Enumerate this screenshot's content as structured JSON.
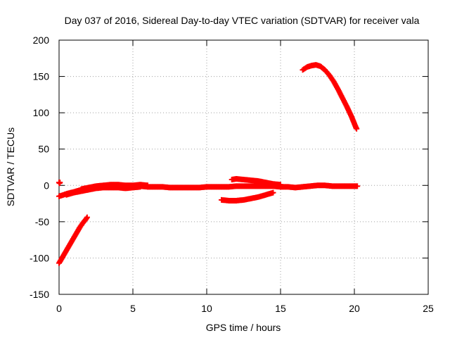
{
  "chart_data": {
    "type": "scatter",
    "title": "Day 037 of 2016, Sidereal Day-to-day VTEC variation (SDTVAR) for receiver vala",
    "xlabel": "GPS time / hours",
    "ylabel": "SDTVAR / TECUs",
    "xlim": [
      0,
      25
    ],
    "ylim": [
      -150,
      200
    ],
    "xticks": [
      0,
      5,
      10,
      15,
      20,
      25
    ],
    "yticks": [
      -150,
      -100,
      -50,
      0,
      50,
      100,
      150,
      200
    ],
    "grid": true,
    "legend": "none",
    "marker": "plus",
    "series_color": "#ff0000",
    "series": [
      {
        "points": [
          [
            0.0,
            4
          ],
          [
            0.03,
            3
          ],
          [
            0.06,
            4
          ]
        ]
      },
      {
        "points": [
          [
            0.0,
            -107
          ],
          [
            0.2,
            -100
          ],
          [
            0.4,
            -93
          ],
          [
            0.6,
            -86
          ],
          [
            0.8,
            -79
          ],
          [
            1.0,
            -72
          ],
          [
            1.2,
            -65
          ],
          [
            1.4,
            -58
          ],
          [
            1.6,
            -52
          ],
          [
            1.8,
            -47
          ],
          [
            1.9,
            -44
          ]
        ]
      },
      {
        "points": [
          [
            0.0,
            -15
          ],
          [
            0.3,
            -13
          ],
          [
            0.6,
            -11
          ],
          [
            1.0,
            -9
          ],
          [
            1.5,
            -6
          ],
          [
            2.0,
            -4
          ],
          [
            2.5,
            -3
          ],
          [
            3.0,
            -2
          ],
          [
            3.5,
            -2
          ],
          [
            4.0,
            -1
          ],
          [
            4.5,
            -2
          ],
          [
            5.0,
            -2
          ],
          [
            5.5,
            -1
          ],
          [
            6.0,
            -2
          ],
          [
            6.5,
            -2
          ],
          [
            7.0,
            -2
          ],
          [
            7.5,
            -3
          ],
          [
            8.0,
            -3
          ],
          [
            8.5,
            -3
          ],
          [
            9.0,
            -3
          ],
          [
            9.5,
            -3
          ],
          [
            10.0,
            -2
          ],
          [
            10.5,
            -2
          ],
          [
            11.0,
            -2
          ],
          [
            11.5,
            -2
          ],
          [
            12.0,
            -1
          ],
          [
            12.5,
            -1
          ],
          [
            13.0,
            -1
          ],
          [
            13.5,
            -1
          ],
          [
            14.0,
            -1
          ],
          [
            14.5,
            -1
          ],
          [
            15.0,
            -2
          ],
          [
            15.5,
            -2
          ],
          [
            16.0,
            -3
          ],
          [
            16.5,
            -2
          ],
          [
            17.0,
            -1
          ],
          [
            17.5,
            0
          ],
          [
            18.0,
            0
          ],
          [
            18.5,
            -1
          ],
          [
            19.0,
            -1
          ],
          [
            19.5,
            -1
          ],
          [
            20.0,
            -1
          ],
          [
            20.2,
            -1
          ]
        ]
      },
      {
        "points": [
          [
            0.5,
            -13
          ],
          [
            1.0,
            -10
          ],
          [
            1.5,
            -8
          ],
          [
            2.0,
            -6
          ],
          [
            2.5,
            -4
          ],
          [
            3.0,
            -3
          ],
          [
            3.5,
            -3
          ],
          [
            4.0,
            -3
          ],
          [
            4.5,
            -4
          ],
          [
            5.0,
            -3
          ],
          [
            5.5,
            -2
          ]
        ]
      },
      {
        "points": [
          [
            1.5,
            -5
          ],
          [
            2.0,
            -3
          ],
          [
            2.5,
            -1
          ],
          [
            3.0,
            0
          ],
          [
            3.5,
            1
          ],
          [
            4.0,
            1
          ],
          [
            4.5,
            0
          ],
          [
            5.0,
            0
          ],
          [
            5.5,
            1
          ],
          [
            6.0,
            0
          ]
        ]
      },
      {
        "points": [
          [
            11.0,
            -20
          ],
          [
            11.5,
            -21
          ],
          [
            12.0,
            -21
          ],
          [
            12.5,
            -20
          ],
          [
            13.0,
            -18
          ],
          [
            13.5,
            -16
          ],
          [
            14.0,
            -13
          ],
          [
            14.5,
            -10
          ]
        ]
      },
      {
        "points": [
          [
            11.7,
            8
          ],
          [
            12.0,
            9
          ],
          [
            12.5,
            8
          ],
          [
            13.0,
            7
          ],
          [
            13.5,
            6
          ],
          [
            14.0,
            4
          ],
          [
            14.5,
            2
          ],
          [
            15.0,
            1
          ]
        ]
      },
      {
        "points": [
          [
            16.5,
            159
          ],
          [
            16.8,
            163
          ],
          [
            17.1,
            165
          ],
          [
            17.4,
            166
          ],
          [
            17.7,
            164
          ],
          [
            18.0,
            159
          ],
          [
            18.3,
            152
          ],
          [
            18.6,
            143
          ],
          [
            18.9,
            132
          ],
          [
            19.2,
            120
          ],
          [
            19.5,
            108
          ],
          [
            19.8,
            95
          ],
          [
            20.1,
            80
          ],
          [
            20.15,
            78
          ]
        ]
      }
    ]
  }
}
